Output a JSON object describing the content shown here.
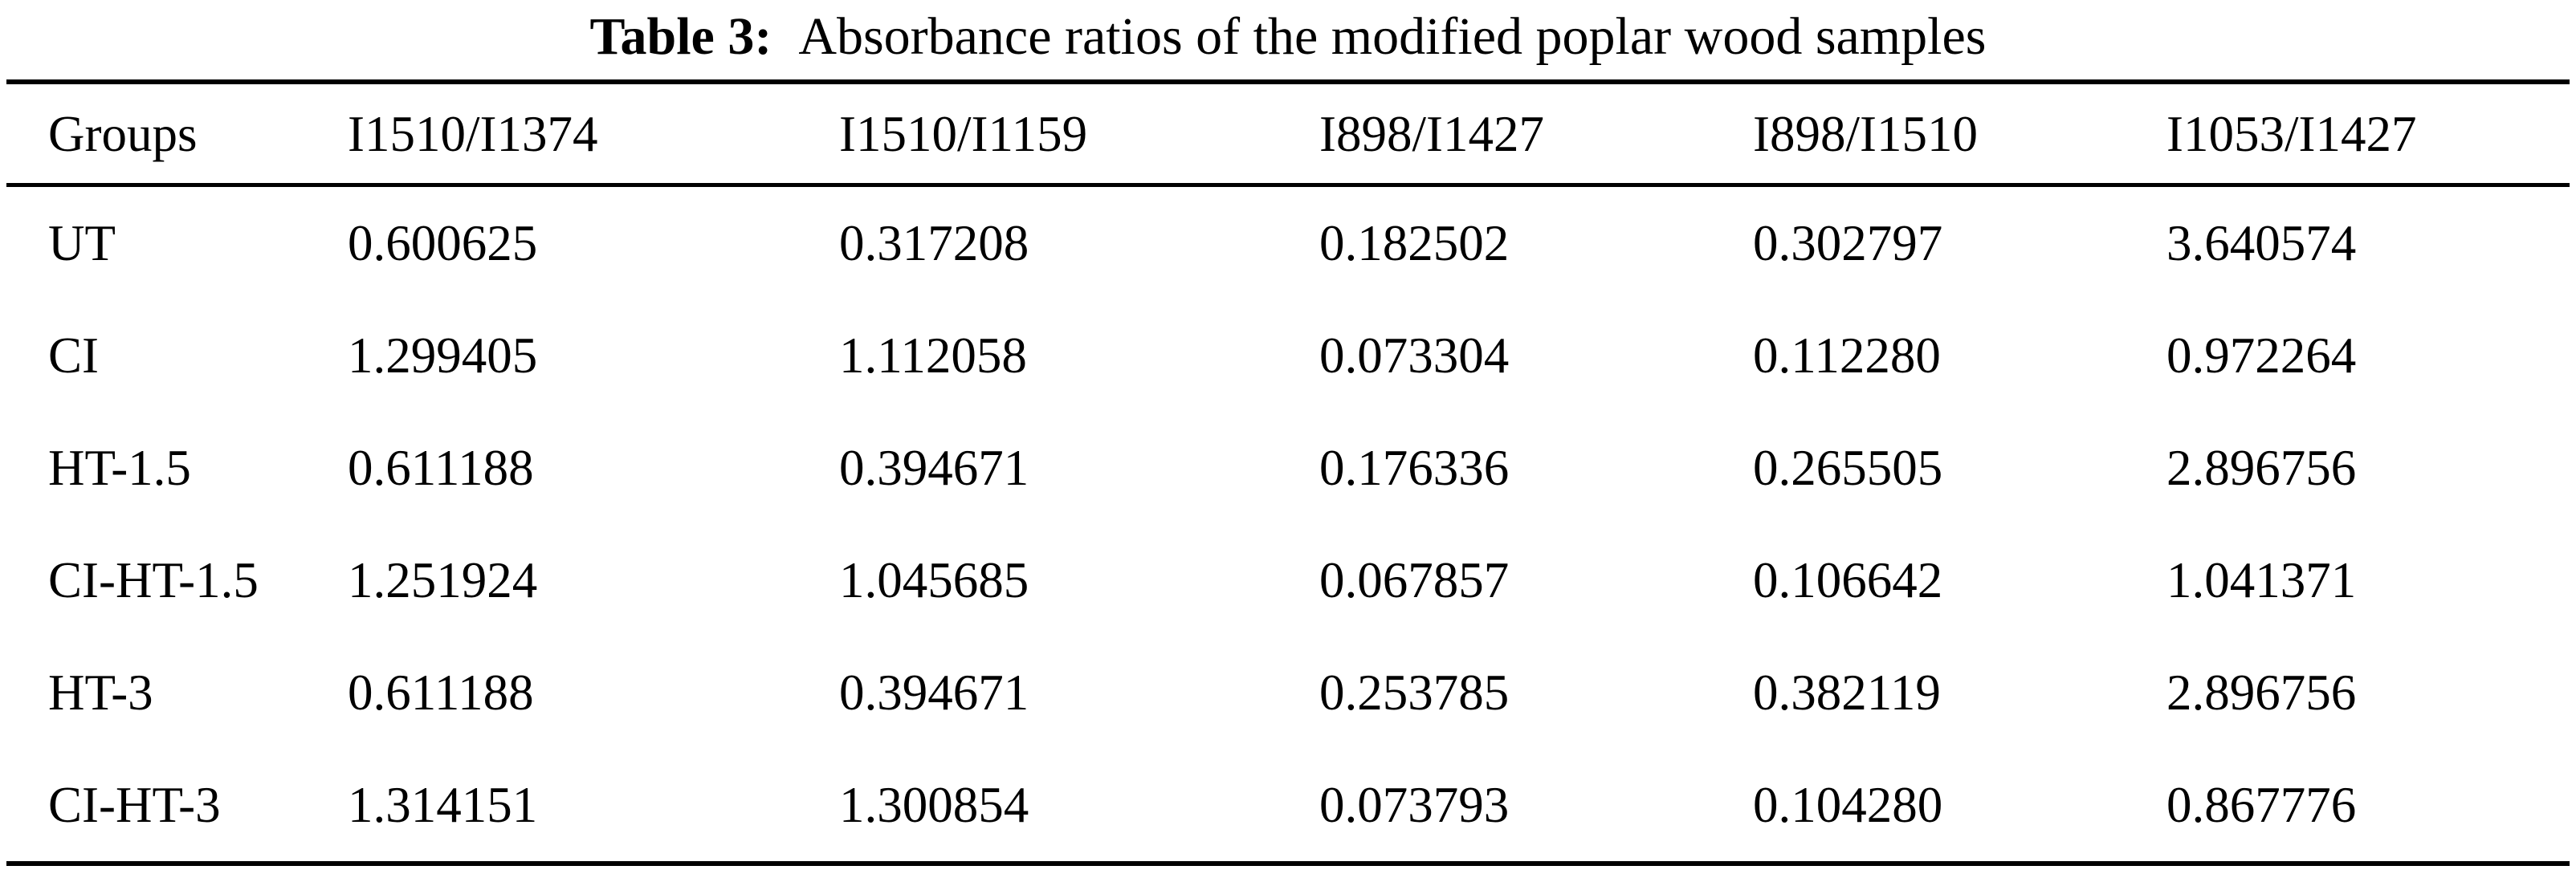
{
  "caption": {
    "label": "Table 3:",
    "text": "Absorbance ratios of the modified poplar wood samples"
  },
  "table": {
    "headers": [
      "Groups",
      "I1510/I1374",
      "I1510/I1159",
      "I898/I1427",
      "I898/I1510",
      "I1053/I1427"
    ],
    "rows": [
      {
        "group": "UT",
        "values": [
          "0.600625",
          "0.317208",
          "0.182502",
          "0.302797",
          "3.640574"
        ]
      },
      {
        "group": "CI",
        "values": [
          "1.299405",
          "1.112058",
          "0.073304",
          "0.112280",
          "0.972264"
        ]
      },
      {
        "group": "HT-1.5",
        "values": [
          "0.611188",
          "0.394671",
          "0.176336",
          "0.265505",
          "2.896756"
        ]
      },
      {
        "group": "CI-HT-1.5",
        "values": [
          "1.251924",
          "1.045685",
          "0.067857",
          "0.106642",
          "1.041371"
        ]
      },
      {
        "group": "HT-3",
        "values": [
          "0.611188",
          "0.394671",
          "0.253785",
          "0.382119",
          "2.896756"
        ]
      },
      {
        "group": "CI-HT-3",
        "values": [
          "1.314151",
          "1.300854",
          "0.073793",
          "0.104280",
          "0.867776"
        ]
      }
    ]
  }
}
